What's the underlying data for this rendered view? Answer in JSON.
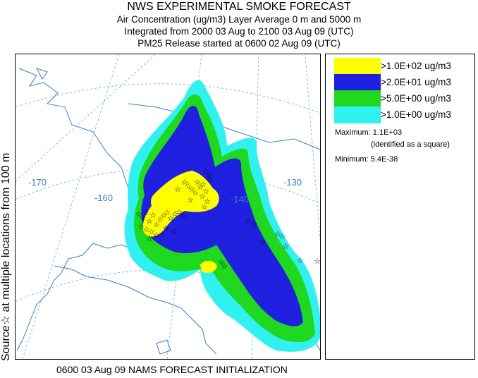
{
  "header": {
    "title": "NWS EXPERIMENTAL SMOKE FORECAST",
    "line2": "Air Concentration (ug/m3) Layer Average    0 m and  5000 m",
    "line3": "Integrated from 2000 03 Aug to 2100 03 Aug 09 (UTC)",
    "line4": "PM25 Release started at 0600 02 Aug 09 (UTC)"
  },
  "side_label": "Source☆ at multiple locations  from   100 m",
  "footer": "0600 03 Aug 09 NAMS FORECAST INITIALIZATION",
  "map": {
    "longitude_labels": [
      "-170",
      "-160",
      "-140",
      "-130"
    ],
    "colors": {
      "land_fill": "#ffffff",
      "coast": "#3a7fc0",
      "graticule": "#6aa6d8"
    }
  },
  "legend": {
    "items": [
      {
        "label": ">1.0E+02 ug/m3",
        "color": "#ffff00"
      },
      {
        "label": ">2.0E+01 ug/m3",
        "color": "#2020e0"
      },
      {
        "label": ">5.0E+00 ug/m3",
        "color": "#20d820"
      },
      {
        "label": ">1.0E+00 ug/m3",
        "color": "#30f0f0"
      }
    ],
    "maximum": "Maximum: 1.1E+03",
    "maximum_note": "(identified as a square)",
    "minimum": "Minimum: 5.4E-38"
  }
}
